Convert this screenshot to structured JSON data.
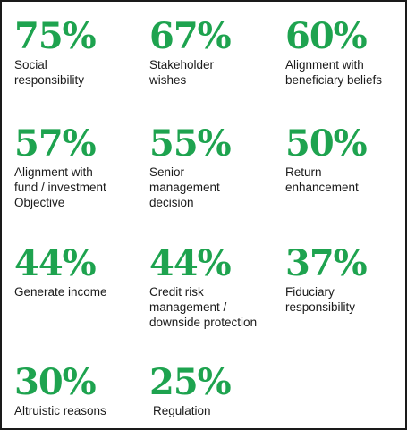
{
  "colors": {
    "accent": "#1ea34f",
    "text": "#1a1a1a",
    "border": "#1a1a1a"
  },
  "stats": [
    {
      "value": "75%",
      "label": "Social\nresponsibility"
    },
    {
      "value": "67%",
      "label": "Stakeholder\nwishes"
    },
    {
      "value": "60%",
      "label": "Alignment with\nbeneficiary beliefs"
    },
    {
      "value": "57%",
      "label": "Alignment with\nfund / investment\nObjective"
    },
    {
      "value": "55%",
      "label": "Senior\nmanagement\ndecision"
    },
    {
      "value": "50%",
      "label": "Return\nenhancement"
    },
    {
      "value": "44%",
      "label": "Generate income"
    },
    {
      "value": "44%",
      "label": "Credit risk\nmanagement /\ndownside protection"
    },
    {
      "value": "37%",
      "label": "Fiduciary\nresponsibility"
    },
    {
      "value": "30%",
      "label": "Altruistic reasons"
    },
    {
      "value": "25%",
      "label": "Regulation"
    }
  ]
}
